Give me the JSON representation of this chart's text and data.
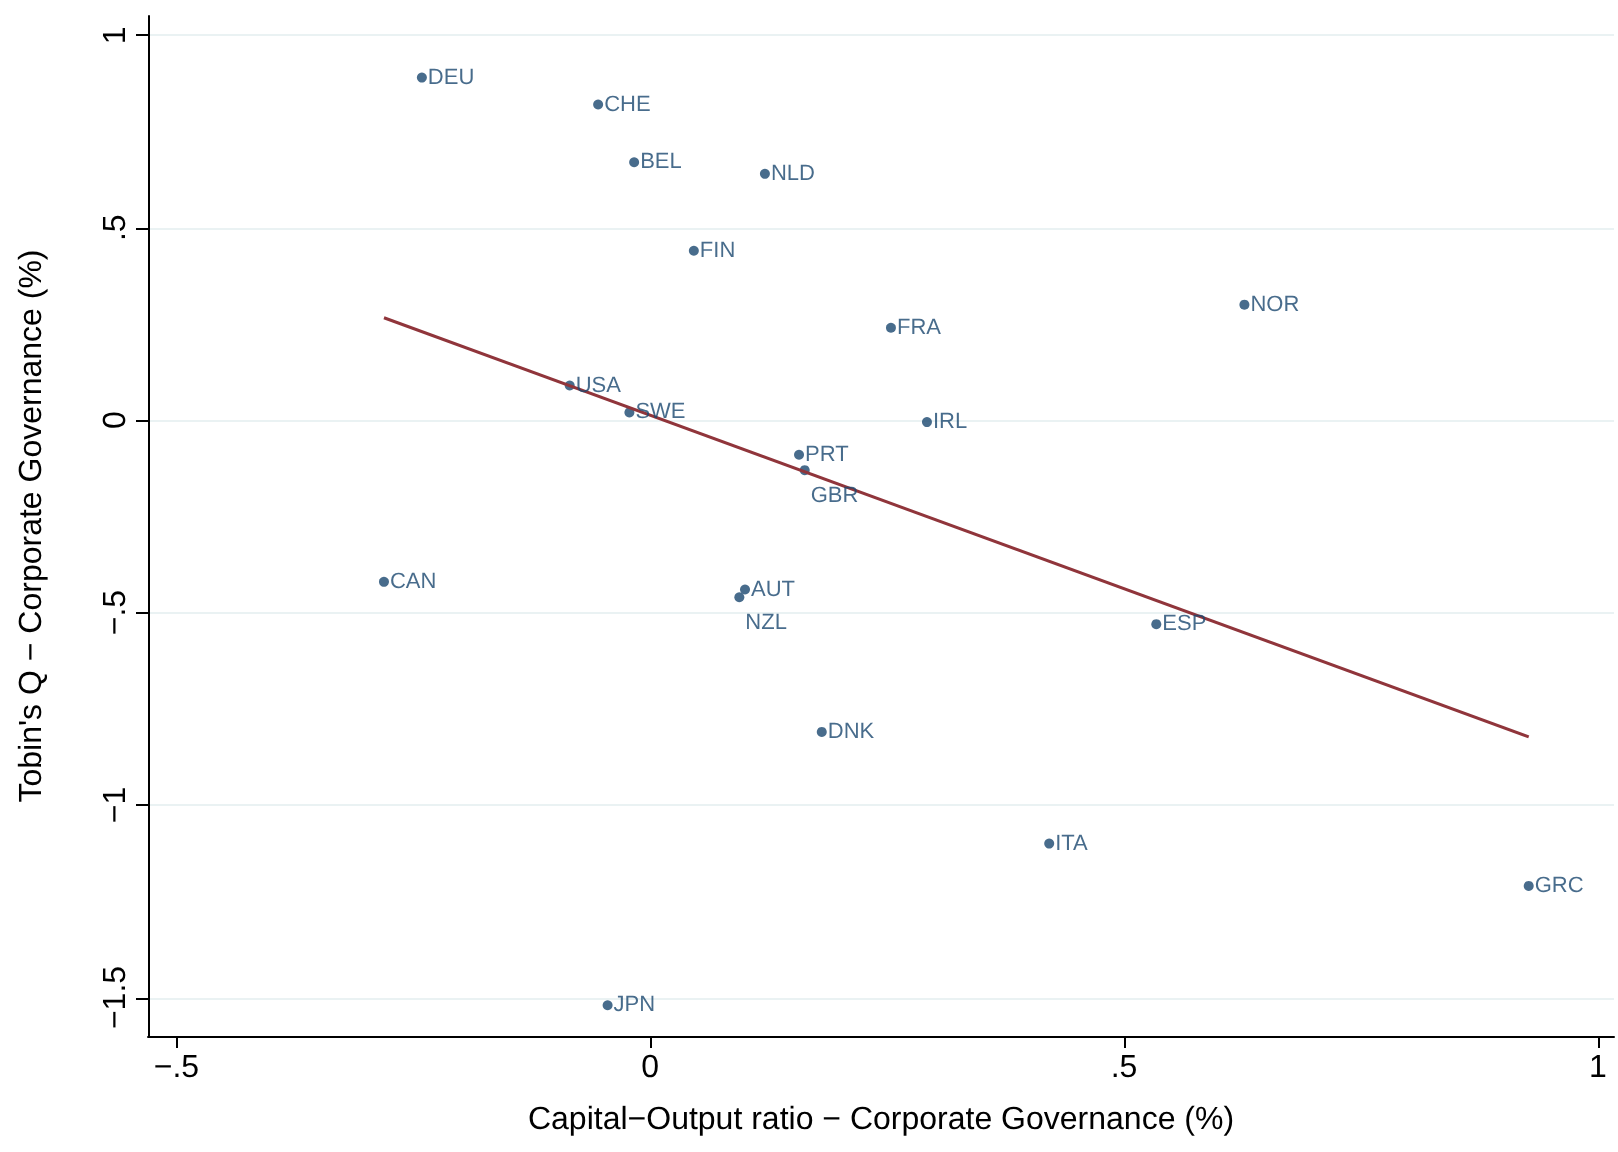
{
  "chart_data": {
    "type": "scatter",
    "xlabel": "Capital−Output ratio − Corporate Governance (%)",
    "ylabel": "Tobin's Q − Corporate Governance (%)",
    "xlim": [
      -0.53,
      1.017
    ],
    "ylim": [
      -1.6,
      1.05
    ],
    "xticks": [
      {
        "value": -0.5,
        "label": "−.5"
      },
      0,
      {
        "value": 0.5,
        "label": ".5"
      },
      1
    ],
    "yticks": [
      {
        "value": -1.5,
        "label": "−1.5"
      },
      {
        "value": -1,
        "label": "−1"
      },
      {
        "value": -0.5,
        "label": "−.5"
      },
      0,
      {
        "value": 0.5,
        "label": ".5"
      },
      1
    ],
    "grid": "y",
    "marker": "circle",
    "series": [
      {
        "type": "scatter",
        "color": "#1a476f",
        "x": [
          -0.241,
          -0.055,
          -0.017,
          0.121,
          0.046,
          0.254,
          0.627,
          -0.085,
          -0.022,
          0.157,
          0.292,
          0.163,
          -0.281,
          0.1,
          0.094,
          0.534,
          0.181,
          0.421,
          0.927,
          -0.045
        ],
        "values": [
          0.89,
          0.82,
          0.67,
          0.64,
          0.44,
          0.24,
          0.3,
          0.09,
          0.02,
          -0.09,
          -0.005,
          -0.13,
          -0.42,
          -0.44,
          -0.46,
          -0.53,
          -0.81,
          -1.1,
          -1.21,
          -1.52
        ]
      },
      {
        "type": "line",
        "color": "#90353b",
        "marker": "none",
        "x": [
          -0.281,
          0.927
        ],
        "values": [
          0.266,
          -0.823
        ]
      }
    ],
    "annotations": [
      {
        "text": "DEU",
        "x": -0.241,
        "y": 0.89
      },
      {
        "text": "CHE",
        "x": -0.055,
        "y": 0.82
      },
      {
        "text": "BEL",
        "x": -0.017,
        "y": 0.67
      },
      {
        "text": "NLD",
        "x": 0.121,
        "y": 0.64
      },
      {
        "text": "FIN",
        "x": 0.046,
        "y": 0.44
      },
      {
        "text": "FRA",
        "x": 0.254,
        "y": 0.24
      },
      {
        "text": "NOR",
        "x": 0.627,
        "y": 0.3
      },
      {
        "text": "USA",
        "x": -0.085,
        "y": 0.09
      },
      {
        "text": "SWE",
        "x": -0.022,
        "y": 0.02
      },
      {
        "text": "PRT",
        "x": 0.157,
        "y": -0.09
      },
      {
        "text": "IRL",
        "x": 0.292,
        "y": -0.005
      },
      {
        "text": "GBR",
        "x": 0.163,
        "y": -0.13
      },
      {
        "text": "CAN",
        "x": -0.281,
        "y": -0.42
      },
      {
        "text": "AUT",
        "x": 0.1,
        "y": -0.44
      },
      {
        "text": "NZL",
        "x": 0.094,
        "y": -0.46
      },
      {
        "text": "ESP",
        "x": 0.534,
        "y": -0.53
      },
      {
        "text": "DNK",
        "x": 0.181,
        "y": -0.81
      },
      {
        "text": "ITA",
        "x": 0.421,
        "y": -1.1
      },
      {
        "text": "GRC",
        "x": 0.927,
        "y": -1.21
      },
      {
        "text": "JPN",
        "x": -0.045,
        "y": -1.52
      }
    ]
  }
}
